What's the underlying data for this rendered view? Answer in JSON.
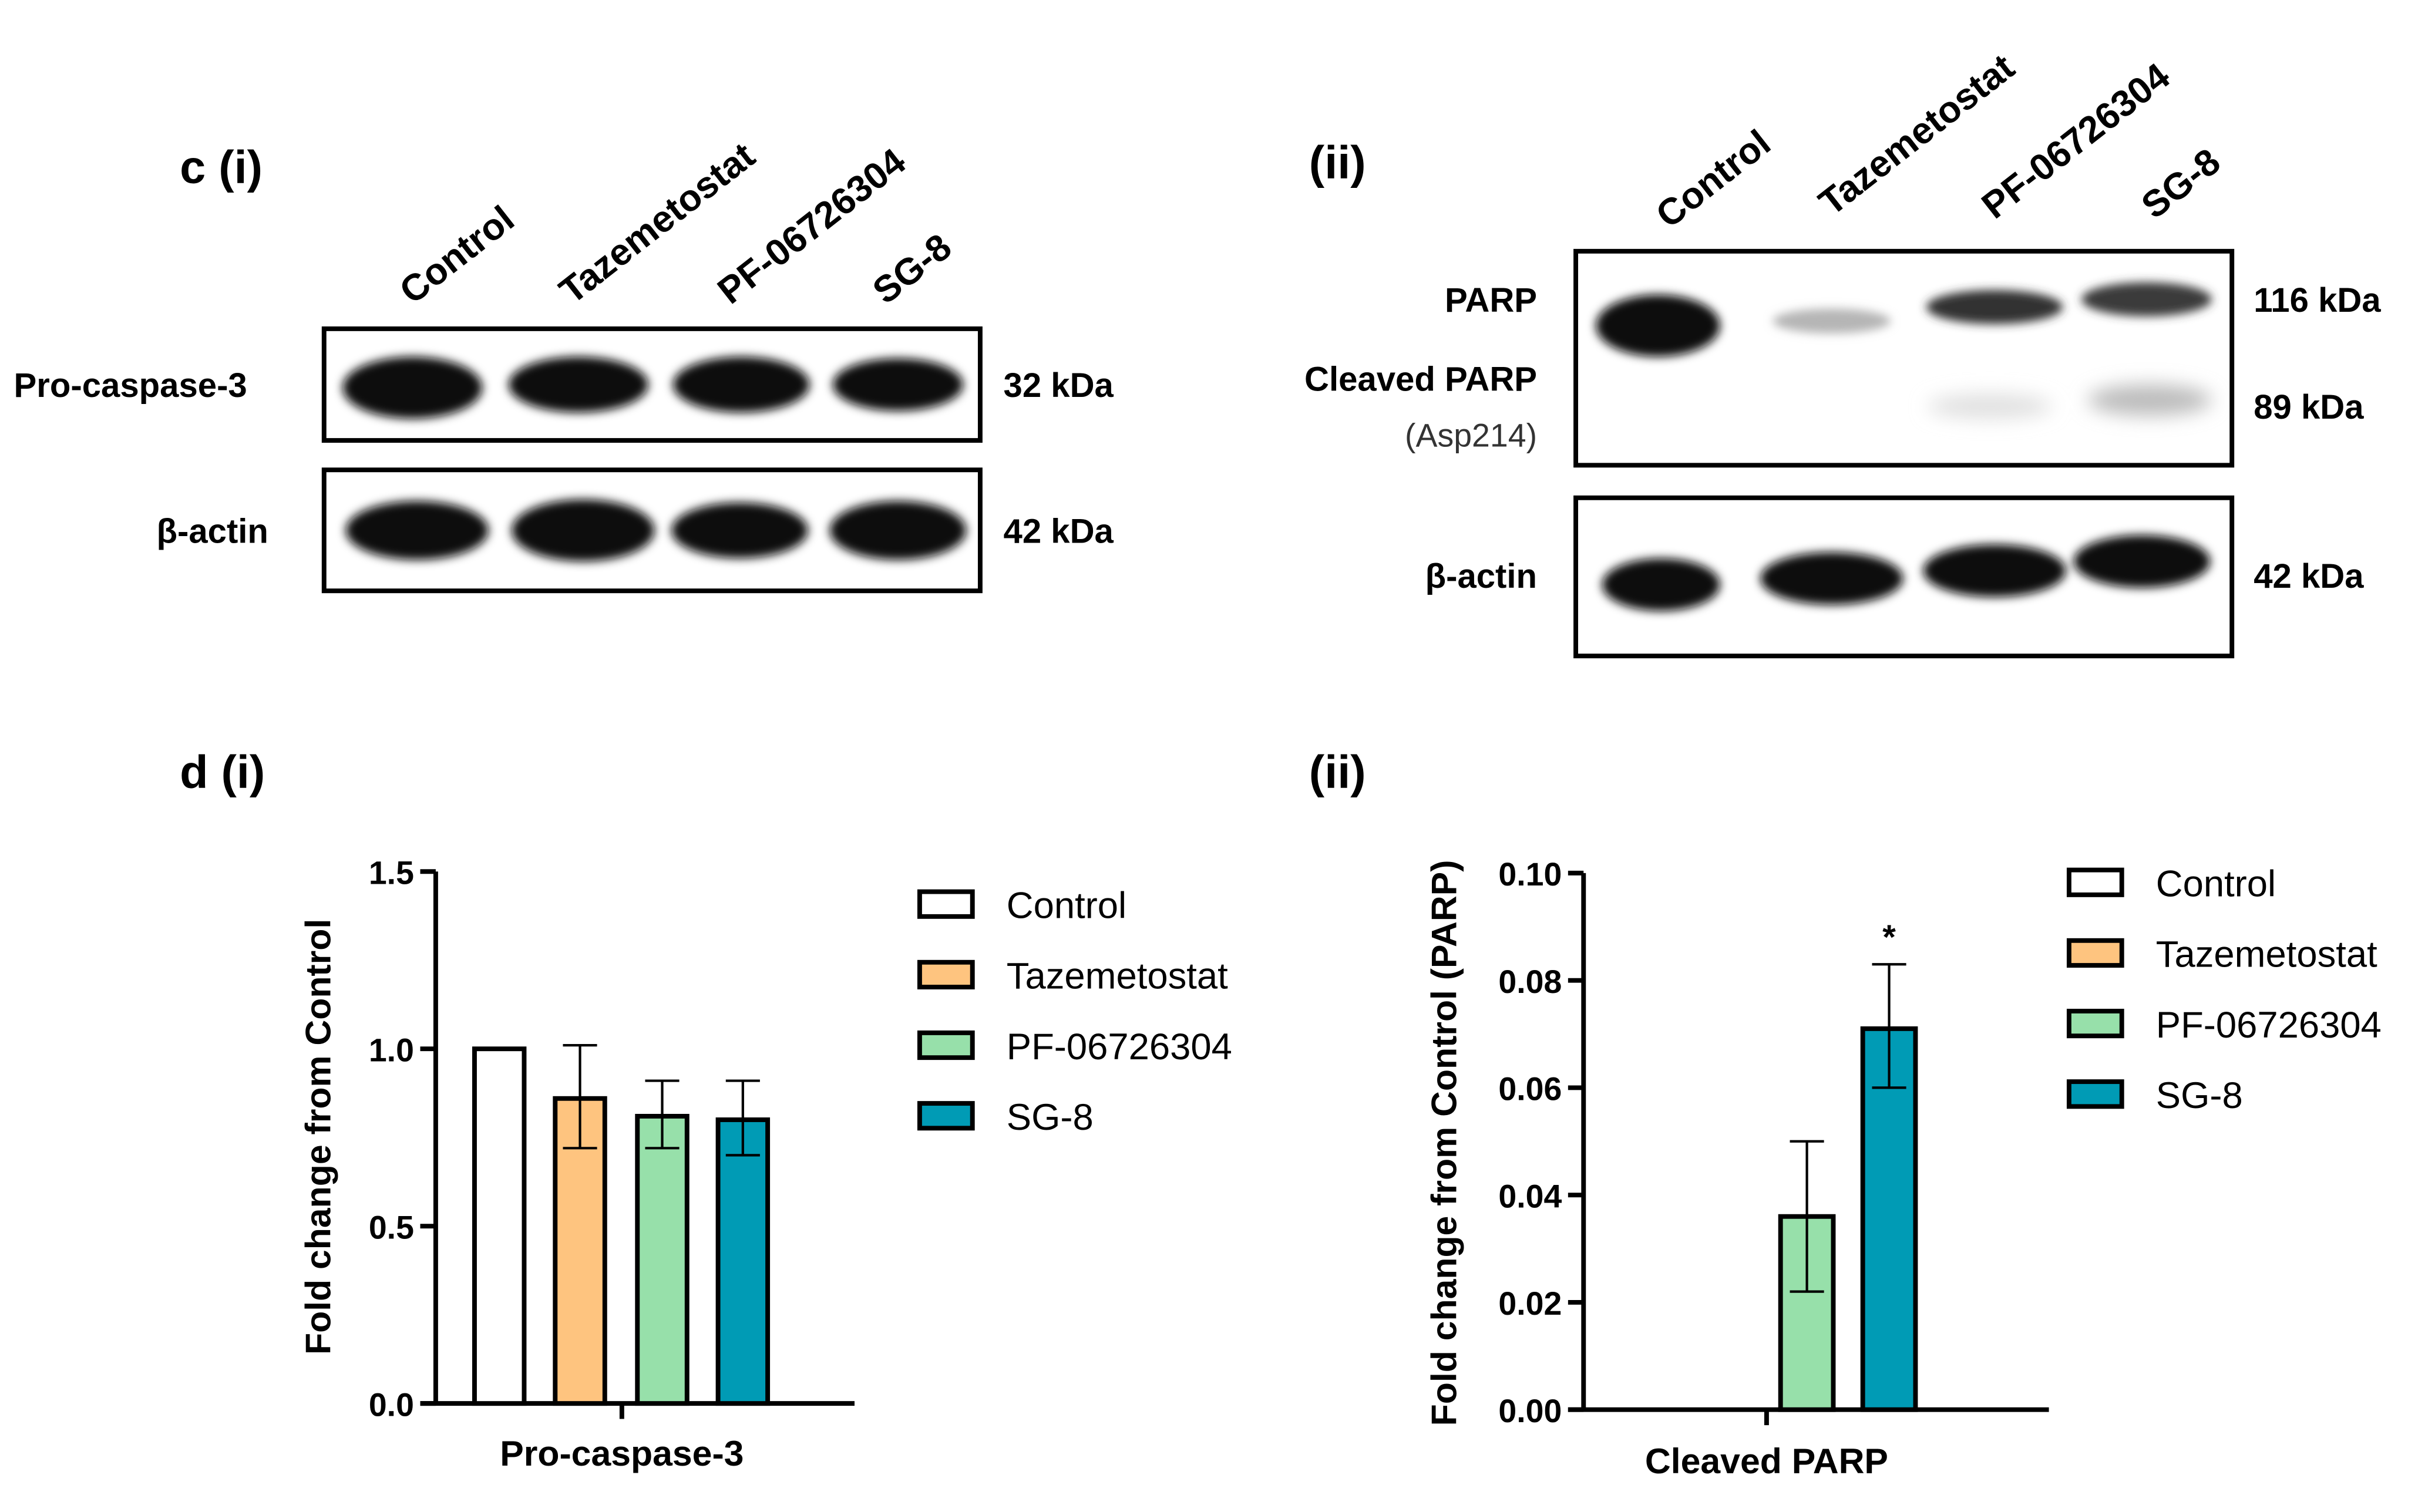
{
  "panels": {
    "c_i": "c (i)",
    "c_ii": "(ii)",
    "d_i": "d (i)",
    "d_ii": "(ii)"
  },
  "lanes": [
    "Control",
    "Tazemetostat",
    "PF-06726304",
    "SG-8"
  ],
  "blot_i": {
    "rows": [
      {
        "label": "Pro-caspase-3",
        "kda": "32 kDa"
      },
      {
        "label": "β-actin",
        "kda": "42 kDa"
      }
    ]
  },
  "blot_ii": {
    "parp_label": "PARP",
    "parp_kda": "116 kDa",
    "cleaved_label": "Cleaved PARP",
    "cleaved_sub": "(Asp214)",
    "cleaved_kda": "89 kDa",
    "actin_label": "β-actin",
    "actin_kda": "42 kDa"
  },
  "colors": {
    "Control": "#ffffff",
    "Tazemetostat": "#fec47f",
    "PF-06726304": "#97e0aa",
    "SG-8": "#009bb5"
  },
  "chart_data": [
    {
      "type": "bar",
      "title": "",
      "xlabel": "Pro-caspase-3",
      "ylabel": "Fold change from Control",
      "ylim": [
        0,
        1.5
      ],
      "yticks": [
        "0.0",
        "0.5",
        "1.0",
        "1.5"
      ],
      "ytick_values": [
        0,
        0.5,
        1.0,
        1.5
      ],
      "categories": [
        "Pro-caspase-3"
      ],
      "legend": [
        "Control",
        "Tazemetostat",
        "PF-06726304",
        "SG-8"
      ],
      "legend_position": "right",
      "series": [
        {
          "name": "Control",
          "values": [
            1.0
          ],
          "err_low": [
            null
          ],
          "err_high": [
            null
          ]
        },
        {
          "name": "Tazemetostat",
          "values": [
            0.86
          ],
          "err_low": [
            0.72
          ],
          "err_high": [
            1.01
          ]
        },
        {
          "name": "PF-06726304",
          "values": [
            0.81
          ],
          "err_low": [
            0.72
          ],
          "err_high": [
            0.91
          ]
        },
        {
          "name": "SG-8",
          "values": [
            0.8
          ],
          "err_low": [
            0.7
          ],
          "err_high": [
            0.91
          ]
        }
      ],
      "annotations": []
    },
    {
      "type": "bar",
      "title": "",
      "xlabel": "Cleaved PARP",
      "ylabel": "Fold change from Control (PARP)",
      "ylim": [
        0,
        0.1
      ],
      "yticks": [
        "0.00",
        "0.02",
        "0.04",
        "0.06",
        "0.08",
        "0.10"
      ],
      "ytick_values": [
        0,
        0.02,
        0.04,
        0.06,
        0.08,
        0.1
      ],
      "categories": [
        "Cleaved PARP"
      ],
      "legend": [
        "Control",
        "Tazemetostat",
        "PF-06726304",
        "SG-8"
      ],
      "legend_position": "right",
      "series": [
        {
          "name": "Control",
          "values": [
            0
          ],
          "err_low": [
            null
          ],
          "err_high": [
            null
          ]
        },
        {
          "name": "Tazemetostat",
          "values": [
            0
          ],
          "err_low": [
            null
          ],
          "err_high": [
            null
          ]
        },
        {
          "name": "PF-06726304",
          "values": [
            0.036
          ],
          "err_low": [
            0.022
          ],
          "err_high": [
            0.05
          ]
        },
        {
          "name": "SG-8",
          "values": [
            0.071
          ],
          "err_low": [
            0.06
          ],
          "err_high": [
            0.083
          ]
        }
      ],
      "annotations": [
        {
          "series": "SG-8",
          "text": "*"
        }
      ]
    }
  ]
}
